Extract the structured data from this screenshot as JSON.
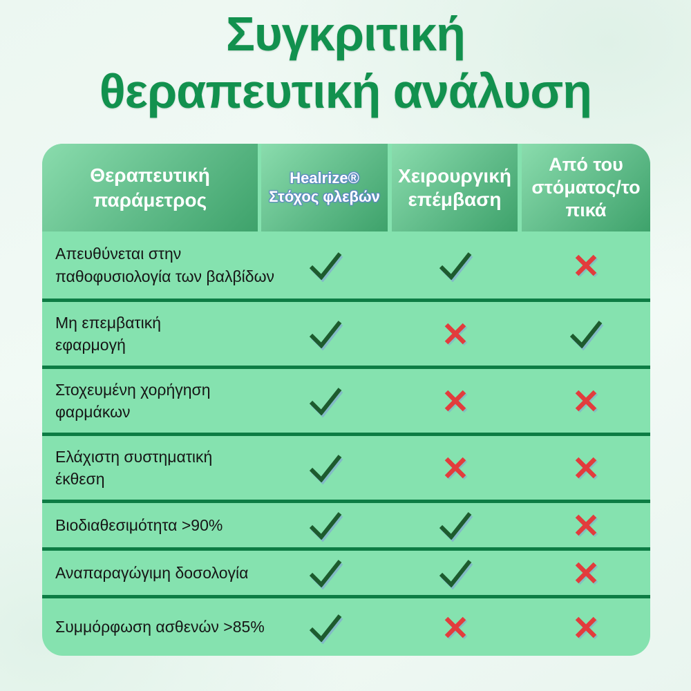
{
  "title": {
    "text": "Συγκριτική\nθεραπευτική ανάλυση"
  },
  "colors": {
    "title": "#12914e",
    "table_bg": "#85e2af",
    "header_grad_start": "#8adcad",
    "header_grad_end": "#3ea26b",
    "separator": "#0d7c44",
    "check": "#1d5b2e",
    "cross": "#e23c3c",
    "header_text": "#ffffff",
    "label_text": "#161616"
  },
  "table": {
    "columns": [
      {
        "id": "therapeutic-parameter",
        "label": "Θεραπευτική\nπαράμετρος"
      },
      {
        "id": "healrize-vein-target",
        "label": "Healrize®\nΣτόχος φλεβών"
      },
      {
        "id": "surgical-intervention",
        "label": "Χειρουργική\nεπέμβαση"
      },
      {
        "id": "oral-topical",
        "label": "Από του\nστόματος/το\nπικά"
      }
    ],
    "rows": [
      {
        "label": "Απευθύνεται στην\nπαθοφυσιολογία των βαλβίδων",
        "marks": [
          "check",
          "check",
          "cross"
        ]
      },
      {
        "label": "Μη επεμβατική\nεφαρμογή",
        "marks": [
          "check",
          "cross",
          "check"
        ]
      },
      {
        "label": "Στοχευμένη χορήγηση\nφαρμάκων",
        "marks": [
          "check",
          "cross",
          "cross"
        ]
      },
      {
        "label": "Ελάχιστη συστηματική\nέκθεση",
        "marks": [
          "check",
          "cross",
          "cross"
        ]
      },
      {
        "label": "Βιοδιαθεσιμότητα >90%",
        "marks": [
          "check",
          "check",
          "cross"
        ]
      },
      {
        "label": "Αναπαραγώγιμη δοσολογία",
        "marks": [
          "check",
          "check",
          "cross"
        ]
      },
      {
        "label": "Συμμόρφωση ασθενών >85%",
        "marks": [
          "check",
          "cross",
          "cross"
        ]
      }
    ]
  },
  "chart_data": {
    "type": "table",
    "title": "Συγκριτική θεραπευτική ανάλυση",
    "columns": [
      "Θεραπευτική παράμετρος",
      "Healrize® Στόχος φλεβών",
      "Χειρουργική επέμβαση",
      "Από του στόματος/τοπικά"
    ],
    "rows": [
      [
        "Απευθύνεται στην παθοφυσιολογία των βαλβίδων",
        "✓",
        "✓",
        "✗"
      ],
      [
        "Μη επεμβατική εφαρμογή",
        "✓",
        "✗",
        "✓"
      ],
      [
        "Στοχευμένη χορήγηση φαρμάκων",
        "✓",
        "✗",
        "✗"
      ],
      [
        "Ελάχιστη συστηματική έκθεση",
        "✓",
        "✗",
        "✗"
      ],
      [
        "Βιοδιαθεσιμότητα >90%",
        "✓",
        "✓",
        "✗"
      ],
      [
        "Αναπαραγώγιμη δοσολογία",
        "✓",
        "✓",
        "✗"
      ],
      [
        "Συμμόρφωση ασθενών >85%",
        "✓",
        "✗",
        "✗"
      ]
    ]
  }
}
